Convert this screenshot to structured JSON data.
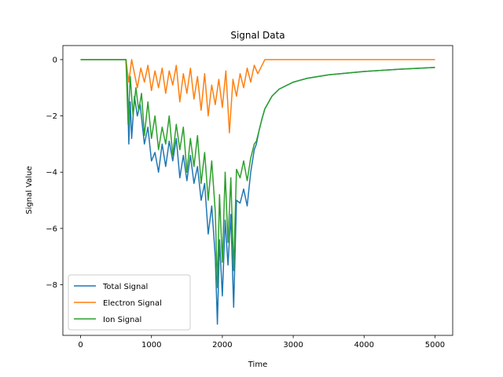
{
  "chart_data": {
    "type": "line",
    "title": "Signal Data",
    "xlabel": "Time",
    "ylabel": "Signal Value",
    "xlim": [
      -250,
      5250
    ],
    "ylim": [
      -9.8,
      0.5
    ],
    "xticks": [
      0,
      1000,
      2000,
      3000,
      4000,
      5000
    ],
    "xtick_labels": [
      "0",
      "1000",
      "2000",
      "3000",
      "4000",
      "5000"
    ],
    "yticks": [
      0,
      -2,
      -4,
      -6,
      -8
    ],
    "ytick_labels": [
      "0",
      "−2",
      "−4",
      "−6",
      "−8"
    ],
    "grid": false,
    "legend_position": "lower-left",
    "series": [
      {
        "name": "Total Signal",
        "color": "#1f77b4",
        "x": [
          0,
          640,
          660,
          680,
          700,
          720,
          760,
          800,
          840,
          900,
          950,
          1000,
          1050,
          1100,
          1150,
          1200,
          1250,
          1300,
          1350,
          1400,
          1450,
          1500,
          1550,
          1600,
          1650,
          1700,
          1750,
          1800,
          1850,
          1900,
          1930,
          1960,
          2000,
          2040,
          2080,
          2120,
          2160,
          2200,
          2250,
          2300,
          2350,
          2400,
          2450,
          2480,
          2520,
          2560,
          2600,
          2700,
          2800,
          3000,
          3200,
          3500,
          4000,
          4500,
          5000
        ],
        "y": [
          0,
          0,
          -0.9,
          -3.0,
          -1.5,
          -2.8,
          -1.3,
          -2.0,
          -1.6,
          -3.0,
          -2.4,
          -3.6,
          -3.3,
          -4.0,
          -3.0,
          -3.8,
          -2.9,
          -3.6,
          -2.8,
          -4.2,
          -3.4,
          -4.3,
          -3.4,
          -4.4,
          -3.8,
          -5.0,
          -4.4,
          -6.2,
          -5.2,
          -7.0,
          -9.4,
          -6.4,
          -8.4,
          -5.7,
          -7.3,
          -5.5,
          -8.8,
          -5.0,
          -5.1,
          -4.6,
          -5.2,
          -4.0,
          -3.2,
          -3.0,
          -2.5,
          -2.1,
          -1.75,
          -1.3,
          -1.05,
          -0.8,
          -0.66,
          -0.54,
          -0.42,
          -0.34,
          -0.28
        ]
      },
      {
        "name": "Electron Signal",
        "color": "#ff7f0e",
        "x": [
          0,
          640,
          680,
          720,
          760,
          800,
          850,
          900,
          950,
          1000,
          1050,
          1100,
          1150,
          1200,
          1250,
          1300,
          1350,
          1400,
          1450,
          1500,
          1550,
          1600,
          1650,
          1700,
          1750,
          1800,
          1850,
          1900,
          1950,
          2000,
          2050,
          2100,
          2150,
          2200,
          2250,
          2300,
          2350,
          2400,
          2450,
          2500,
          2600,
          3000,
          4000,
          5000
        ],
        "y": [
          0,
          0,
          -0.8,
          0,
          -0.5,
          -1.0,
          -0.3,
          -0.8,
          -0.2,
          -1.1,
          -0.4,
          -1.0,
          -0.3,
          -1.2,
          -0.4,
          -0.9,
          -0.2,
          -1.5,
          -0.5,
          -1.2,
          -0.3,
          -1.4,
          -0.6,
          -1.8,
          -0.5,
          -2.0,
          -0.9,
          -1.6,
          -0.7,
          -1.7,
          -0.4,
          -2.6,
          -0.7,
          -1.3,
          -0.5,
          -1.0,
          -0.3,
          -0.8,
          -0.2,
          -0.5,
          0,
          0,
          0,
          0
        ]
      },
      {
        "name": "Ion Signal",
        "color": "#2ca02c",
        "x": [
          0,
          640,
          670,
          700,
          740,
          780,
          820,
          860,
          900,
          950,
          1000,
          1050,
          1100,
          1150,
          1200,
          1250,
          1300,
          1350,
          1400,
          1450,
          1500,
          1550,
          1600,
          1650,
          1700,
          1750,
          1800,
          1850,
          1900,
          1930,
          1960,
          2000,
          2040,
          2080,
          2120,
          2160,
          2200,
          2250,
          2300,
          2350,
          2400,
          2450,
          2480,
          2520,
          2560,
          2600,
          2700,
          2800,
          3000,
          3200,
          3500,
          4000,
          4500,
          5000
        ],
        "y": [
          0,
          0,
          -2.3,
          -0.6,
          -2.0,
          -1.0,
          -1.8,
          -1.2,
          -2.7,
          -1.5,
          -2.8,
          -2.0,
          -3.2,
          -2.4,
          -3.0,
          -2.0,
          -3.4,
          -2.3,
          -3.2,
          -2.4,
          -4.0,
          -2.8,
          -3.8,
          -2.7,
          -4.4,
          -3.3,
          -5.0,
          -3.6,
          -5.4,
          -8.1,
          -4.8,
          -7.2,
          -4.0,
          -6.5,
          -4.2,
          -7.5,
          -3.9,
          -4.2,
          -3.6,
          -4.3,
          -3.5,
          -3.0,
          -2.9,
          -2.5,
          -2.1,
          -1.75,
          -1.3,
          -1.05,
          -0.8,
          -0.66,
          -0.54,
          -0.42,
          -0.34,
          -0.28
        ]
      }
    ]
  }
}
